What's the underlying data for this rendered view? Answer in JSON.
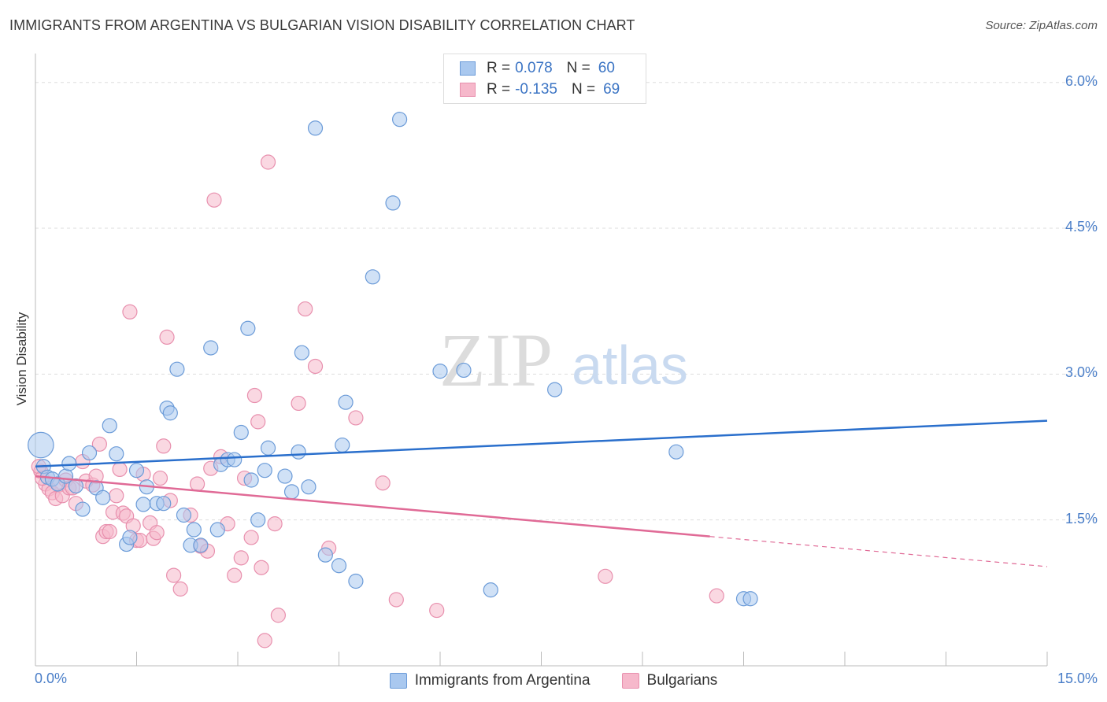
{
  "title": "IMMIGRANTS FROM ARGENTINA VS BULGARIAN VISION DISABILITY CORRELATION CHART",
  "source": "Source: ZipAtlas.com",
  "watermark": {
    "zip": "ZIP",
    "atlas": "atlas"
  },
  "legend_top": {
    "rows": [
      {
        "r_label": "R =",
        "r_value": "0.078",
        "n_label": "N =",
        "n_value": "60"
      },
      {
        "r_label": "R =",
        "r_value": "-0.135",
        "n_label": "N =",
        "n_value": "69"
      }
    ]
  },
  "legend_bottom": [
    "Immigrants from Argentina",
    "Bulgarians"
  ],
  "colors": {
    "blue_fill": "#a9c8ef",
    "blue_stroke": "#6b9bd8",
    "blue_line": "#2a6fcc",
    "pink_fill": "#f6b8cb",
    "pink_stroke": "#e890ae",
    "pink_line": "#e06a96",
    "grid": "#dddddd",
    "tick_label": "#4a7ec8"
  },
  "chart_data": {
    "type": "scatter",
    "title": "IMMIGRANTS FROM ARGENTINA VS BULGARIAN VISION DISABILITY CORRELATION CHART",
    "xlabel": "",
    "ylabel": "Vision Disability",
    "xlim": [
      0,
      15
    ],
    "ylim": [
      0,
      6.2
    ],
    "x_tick_labels": [
      "0.0%",
      "15.0%"
    ],
    "y_ticks": [
      1.5,
      3.0,
      4.5,
      6.0
    ],
    "y_tick_labels": [
      "1.5%",
      "3.0%",
      "4.5%",
      "6.0%"
    ],
    "grid": "horizontal dashed",
    "legend": "top-center",
    "series": [
      {
        "name": "Immigrants from Argentina",
        "R": 0.078,
        "N": 60,
        "trend": {
          "x": [
            0.0,
            15.0
          ],
          "y": [
            2.05,
            2.52
          ]
        },
        "points": [
          [
            0.08,
            2.27,
            1.8
          ],
          [
            0.12,
            2.05,
            1.0
          ],
          [
            0.18,
            1.94,
            1.0
          ],
          [
            0.25,
            1.92,
            1.0
          ],
          [
            0.33,
            1.87,
            1.0
          ],
          [
            0.45,
            1.95,
            1.0
          ],
          [
            0.5,
            2.08,
            1.0
          ],
          [
            0.6,
            1.85,
            1.0
          ],
          [
            0.7,
            1.61,
            1.0
          ],
          [
            0.8,
            2.19,
            1.0
          ],
          [
            0.9,
            1.83,
            1.0
          ],
          [
            1.0,
            1.73,
            1.0
          ],
          [
            1.1,
            2.47,
            1.0
          ],
          [
            1.2,
            2.18,
            1.0
          ],
          [
            1.35,
            1.25,
            1.0
          ],
          [
            1.4,
            1.32,
            1.0
          ],
          [
            1.5,
            2.01,
            1.0
          ],
          [
            1.6,
            1.66,
            1.0
          ],
          [
            1.65,
            1.84,
            1.0
          ],
          [
            1.8,
            1.67,
            1.0
          ],
          [
            1.9,
            1.67,
            1.0
          ],
          [
            1.95,
            2.65,
            1.0
          ],
          [
            2.0,
            2.6,
            1.0
          ],
          [
            2.1,
            3.05,
            1.0
          ],
          [
            2.2,
            1.55,
            1.0
          ],
          [
            2.3,
            1.24,
            1.0
          ],
          [
            2.35,
            1.4,
            1.0
          ],
          [
            2.45,
            1.24,
            1.0
          ],
          [
            2.6,
            3.27,
            1.0
          ],
          [
            2.7,
            1.4,
            1.0
          ],
          [
            2.75,
            2.07,
            1.0
          ],
          [
            2.85,
            2.12,
            1.0
          ],
          [
            2.95,
            2.12,
            1.0
          ],
          [
            3.05,
            2.4,
            1.0
          ],
          [
            3.15,
            3.47,
            1.0
          ],
          [
            3.2,
            1.91,
            1.0
          ],
          [
            3.3,
            1.5,
            1.0
          ],
          [
            3.4,
            2.01,
            1.0
          ],
          [
            3.45,
            2.24,
            1.0
          ],
          [
            3.7,
            1.95,
            1.0
          ],
          [
            3.8,
            1.79,
            1.0
          ],
          [
            3.9,
            2.2,
            1.0
          ],
          [
            3.95,
            3.22,
            1.0
          ],
          [
            4.05,
            1.84,
            1.0
          ],
          [
            4.15,
            5.53,
            1.0
          ],
          [
            4.3,
            1.14,
            1.0
          ],
          [
            4.5,
            1.03,
            1.0
          ],
          [
            4.55,
            2.27,
            1.0
          ],
          [
            4.6,
            2.71,
            1.0
          ],
          [
            4.75,
            0.87,
            1.0
          ],
          [
            5.0,
            4.0,
            1.0
          ],
          [
            5.3,
            4.76,
            1.0
          ],
          [
            5.4,
            5.62,
            1.0
          ],
          [
            6.0,
            3.03,
            1.0
          ],
          [
            6.35,
            3.04,
            1.0
          ],
          [
            6.75,
            0.78,
            1.0
          ],
          [
            7.7,
            2.84,
            1.0
          ],
          [
            9.5,
            2.2,
            1.0
          ],
          [
            10.5,
            0.69,
            1.0
          ],
          [
            10.6,
            0.69,
            1.0
          ]
        ]
      },
      {
        "name": "Bulgarians",
        "R": -0.135,
        "N": 69,
        "trend": {
          "x": [
            0.0,
            15.0
          ],
          "y": [
            1.95,
            1.02
          ]
        },
        "trend_solid_until_x": 10.0,
        "points": [
          [
            0.08,
            2.0,
            1.0
          ],
          [
            0.15,
            1.87,
            1.0
          ],
          [
            0.2,
            1.82,
            1.0
          ],
          [
            0.25,
            1.78,
            1.0
          ],
          [
            0.3,
            1.72,
            1.0
          ],
          [
            0.35,
            1.86,
            1.0
          ],
          [
            0.4,
            1.75,
            1.0
          ],
          [
            0.45,
            1.91,
            1.0
          ],
          [
            0.5,
            1.83,
            1.0
          ],
          [
            0.55,
            1.83,
            1.0
          ],
          [
            0.6,
            1.67,
            1.0
          ],
          [
            0.7,
            2.1,
            1.0
          ],
          [
            0.75,
            1.9,
            1.0
          ],
          [
            0.85,
            1.86,
            1.0
          ],
          [
            0.9,
            1.95,
            1.0
          ],
          [
            0.95,
            2.28,
            1.0
          ],
          [
            1.0,
            1.33,
            1.0
          ],
          [
            1.05,
            1.38,
            1.0
          ],
          [
            1.1,
            1.38,
            1.0
          ],
          [
            1.15,
            1.58,
            1.0
          ],
          [
            1.2,
            1.75,
            1.0
          ],
          [
            1.25,
            2.02,
            1.0
          ],
          [
            1.3,
            1.57,
            1.0
          ],
          [
            1.35,
            1.54,
            1.0
          ],
          [
            1.4,
            3.64,
            1.0
          ],
          [
            1.45,
            1.44,
            1.0
          ],
          [
            1.5,
            1.29,
            1.0
          ],
          [
            1.55,
            1.29,
            1.0
          ],
          [
            1.6,
            1.97,
            1.0
          ],
          [
            1.7,
            1.47,
            1.0
          ],
          [
            1.75,
            1.31,
            1.0
          ],
          [
            1.8,
            1.37,
            1.0
          ],
          [
            1.85,
            1.93,
            1.0
          ],
          [
            1.9,
            2.26,
            1.0
          ],
          [
            1.95,
            3.38,
            1.0
          ],
          [
            2.0,
            1.7,
            1.0
          ],
          [
            2.05,
            0.93,
            1.0
          ],
          [
            2.15,
            0.79,
            1.0
          ],
          [
            2.3,
            1.55,
            1.0
          ],
          [
            2.4,
            1.87,
            1.0
          ],
          [
            2.45,
            1.23,
            1.0
          ],
          [
            2.55,
            1.18,
            1.0
          ],
          [
            2.6,
            2.03,
            1.0
          ],
          [
            2.65,
            4.79,
            1.0
          ],
          [
            2.75,
            2.15,
            1.0
          ],
          [
            2.85,
            1.46,
            1.0
          ],
          [
            2.95,
            0.93,
            1.0
          ],
          [
            3.05,
            1.11,
            1.0
          ],
          [
            3.1,
            1.93,
            1.0
          ],
          [
            3.2,
            1.32,
            1.0
          ],
          [
            3.25,
            2.78,
            1.0
          ],
          [
            3.3,
            2.51,
            1.0
          ],
          [
            3.35,
            1.01,
            1.0
          ],
          [
            3.4,
            0.26,
            1.0
          ],
          [
            3.45,
            5.18,
            1.0
          ],
          [
            3.55,
            1.46,
            1.0
          ],
          [
            3.6,
            0.52,
            1.0
          ],
          [
            3.9,
            2.7,
            1.0
          ],
          [
            4.0,
            3.67,
            1.0
          ],
          [
            4.15,
            3.08,
            1.0
          ],
          [
            4.35,
            1.21,
            1.0
          ],
          [
            4.75,
            2.55,
            1.0
          ],
          [
            5.15,
            1.88,
            1.0
          ],
          [
            5.35,
            0.68,
            1.0
          ],
          [
            5.95,
            0.57,
            1.0
          ],
          [
            8.45,
            0.92,
            1.0
          ],
          [
            10.1,
            0.72,
            1.0
          ],
          [
            0.05,
            2.05,
            1.0
          ],
          [
            0.1,
            1.93,
            1.0
          ]
        ]
      }
    ]
  }
}
